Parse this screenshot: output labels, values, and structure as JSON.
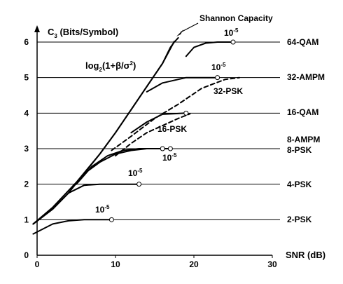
{
  "chart_data": {
    "type": "line",
    "ylabel": "C",
    "ylabel_sub": "3",
    "ylabel_rest": " (Bits/Symbol)",
    "xlabel": "SNR (dB)",
    "xlim": [
      0,
      30
    ],
    "ylim": [
      0,
      6
    ],
    "xticks": [
      "0",
      "10",
      "20",
      "30"
    ],
    "yticks": [
      "0",
      "1",
      "2",
      "3",
      "4",
      "5",
      "6"
    ],
    "grid": "horizontal",
    "annotations": {
      "shannon": "Shannon Capacity",
      "log_main": "log",
      "log_sub": "2",
      "log_arg": "(1+β/σ",
      "log_sup": "2",
      "log_close": ")",
      "psk32": "32-PSK",
      "psk16": "16-PSK",
      "ten": "10",
      "exp": "-5"
    },
    "right_labels": [
      "64-QAM",
      "32-AMPM",
      "16-QAM",
      "8-AMPM",
      "8-PSK",
      "4-PSK",
      "2-PSK"
    ],
    "series": [
      {
        "style": "solid",
        "points": [
          [
            -0.5,
            0.88
          ],
          [
            2,
            1.35
          ],
          [
            5,
            2.05
          ],
          [
            8,
            2.85
          ],
          [
            10,
            3.45
          ],
          [
            12,
            4.1
          ],
          [
            14,
            4.75
          ],
          [
            16,
            5.4
          ],
          [
            17.5,
            6.02
          ]
        ]
      },
      {
        "style": "solid",
        "points": [
          [
            -0.5,
            0.88
          ],
          [
            2,
            1.3
          ],
          [
            4,
            1.75
          ],
          [
            6,
            2.3
          ],
          [
            8,
            2.85
          ],
          [
            10,
            3.45
          ],
          [
            12,
            4.1
          ],
          [
            14,
            4.75
          ],
          [
            16,
            5.4
          ],
          [
            17,
            5.85
          ],
          [
            17.5,
            6.0
          ],
          [
            18,
            6.12
          ]
        ]
      },
      {
        "style": "solid",
        "points": [
          [
            -0.5,
            0.6
          ],
          [
            2,
            0.88
          ],
          [
            4,
            0.97
          ],
          [
            6,
            1.0
          ],
          [
            9.5,
            1.0
          ]
        ]
      },
      {
        "style": "solid",
        "points": [
          [
            -0.5,
            0.88
          ],
          [
            2,
            1.3
          ],
          [
            4,
            1.75
          ],
          [
            6,
            1.97
          ],
          [
            8,
            2.0
          ],
          [
            13,
            2.0
          ]
        ]
      },
      {
        "style": "solid",
        "points": [
          [
            5,
            2.0
          ],
          [
            7,
            2.5
          ],
          [
            9,
            2.8
          ],
          [
            11,
            2.95
          ],
          [
            13,
            3.0
          ],
          [
            16,
            3.0
          ]
        ]
      },
      {
        "style": "solid",
        "points": [
          [
            6,
            2.3
          ],
          [
            8,
            2.62
          ],
          [
            10,
            2.85
          ],
          [
            12,
            2.95
          ],
          [
            14,
            3.0
          ],
          [
            17,
            3.0
          ]
        ]
      },
      {
        "style": "solid",
        "points": [
          [
            12,
            3.45
          ],
          [
            14,
            3.75
          ],
          [
            16,
            3.97
          ],
          [
            19,
            4.0
          ]
        ]
      },
      {
        "style": "solid",
        "points": [
          [
            14,
            4.6
          ],
          [
            16,
            4.85
          ],
          [
            19,
            5.0
          ],
          [
            23,
            5.0
          ]
        ]
      },
      {
        "style": "solid",
        "points": [
          [
            19,
            5.6
          ],
          [
            20,
            5.85
          ],
          [
            21.5,
            5.97
          ],
          [
            23,
            6.0
          ],
          [
            25,
            6.0
          ]
        ]
      },
      {
        "style": "dashed",
        "points": [
          [
            9.5,
            2.95
          ],
          [
            12,
            3.35
          ],
          [
            15,
            3.85
          ],
          [
            18,
            4.25
          ],
          [
            21,
            4.7
          ],
          [
            24,
            4.95
          ],
          [
            25.8,
            5.0
          ]
        ]
      },
      {
        "style": "dashed",
        "points": [
          [
            10,
            2.8
          ],
          [
            12,
            3.15
          ],
          [
            14,
            3.45
          ],
          [
            16,
            3.65
          ],
          [
            18,
            3.85
          ],
          [
            19.5,
            3.98
          ]
        ]
      }
    ],
    "markers": [
      [
        9.5,
        1.0
      ],
      [
        13,
        2.0
      ],
      [
        16,
        3.0
      ],
      [
        17,
        3.0
      ],
      [
        19,
        4.0
      ],
      [
        23,
        5.0
      ],
      [
        25,
        6.0
      ]
    ]
  }
}
